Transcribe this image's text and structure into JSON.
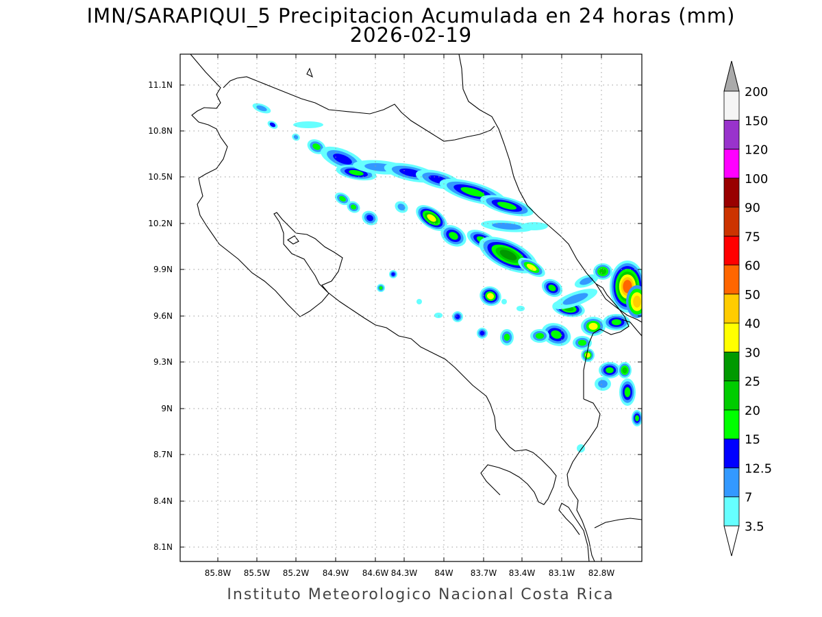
{
  "title": {
    "line1": "IMN/SARAPIQUI_5 Precipitacion Acumulada en 24 horas (mm)",
    "line2": "2026-02-19"
  },
  "footer": "Instituto Meteorologico Nacional Costa Rica",
  "axes": {
    "lon_ticks": [
      "85.8W",
      "85.5W",
      "85.2W",
      "84.9W",
      "84.6W",
      "84.3W",
      "84W",
      "83.7W",
      "83.4W",
      "83.1W",
      "82.8W"
    ],
    "lat_ticks": [
      "11.1N",
      "10.8N",
      "10.5N",
      "10.2N",
      "9.9N",
      "9.6N",
      "9.3N",
      "9N",
      "8.7N",
      "8.4N",
      "8.1N"
    ]
  },
  "colorbar": {
    "labels": [
      "3.5",
      "7",
      "12.5",
      "15",
      "20",
      "25",
      "30",
      "40",
      "50",
      "60",
      "75",
      "90",
      "100",
      "120",
      "150",
      "200"
    ],
    "colors": [
      "#66ffff",
      "#3399ff",
      "#0000ff",
      "#00ff00",
      "#00cc00",
      "#009900",
      "#ffff00",
      "#ffcc00",
      "#ff6600",
      "#ff0000",
      "#cc3300",
      "#990000",
      "#ff00ff",
      "#9933cc",
      "#f5f5f5"
    ],
    "over_color": "#aaaaaa",
    "under_color": "#ffffff"
  },
  "map": {
    "colors": {
      "light": "#66ffff",
      "mid": "#3399ff",
      "deep": "#0000ff",
      "green": "#00ff00",
      "dgreen": "#00cc00",
      "ddgreen": "#009900",
      "yellow": "#ffff00",
      "orange": "#ffcc00",
      "red": "#ff6600"
    }
  }
}
